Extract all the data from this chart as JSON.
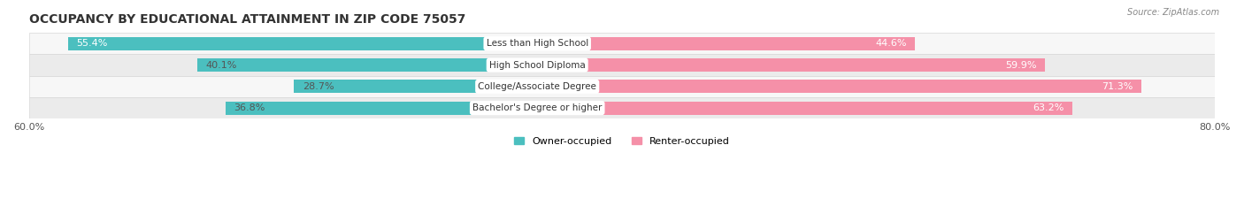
{
  "title": "OCCUPANCY BY EDUCATIONAL ATTAINMENT IN ZIP CODE 75057",
  "source": "Source: ZipAtlas.com",
  "categories": [
    "Less than High School",
    "High School Diploma",
    "College/Associate Degree",
    "Bachelor's Degree or higher"
  ],
  "owner_values": [
    55.4,
    40.1,
    28.7,
    36.8
  ],
  "renter_values": [
    44.6,
    59.9,
    71.3,
    63.2
  ],
  "owner_color": "#4BBFBF",
  "renter_color": "#F590A8",
  "row_bg_colors": [
    "#F7F7F7",
    "#EBEBEB"
  ],
  "axis_left_label": "60.0%",
  "axis_right_label": "80.0%",
  "legend_owner": "Owner-occupied",
  "legend_renter": "Renter-occupied",
  "title_fontsize": 10,
  "label_fontsize": 8,
  "bar_height": 0.62,
  "xlim_left": -60,
  "xlim_right": 80
}
